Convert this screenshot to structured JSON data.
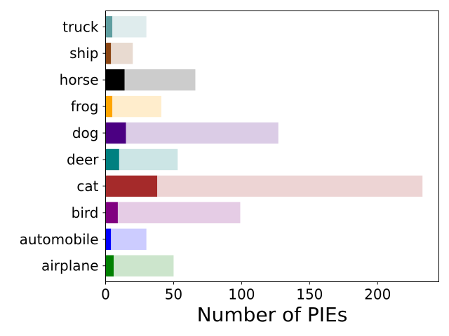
{
  "chart_data": {
    "type": "bar",
    "orientation": "horizontal",
    "stacked": true,
    "categories": [
      "airplane",
      "automobile",
      "bird",
      "cat",
      "deer",
      "dog",
      "frog",
      "horse",
      "ship",
      "truck"
    ],
    "series": [
      {
        "values": [
          6,
          4,
          9,
          38,
          10,
          15,
          5,
          14,
          4,
          5
        ]
      },
      {
        "values": [
          44,
          26,
          90,
          195,
          43,
          112,
          36,
          52,
          16,
          25
        ]
      }
    ],
    "colors": [
      {
        "solid": "#008000",
        "light": "#cce5cc"
      },
      {
        "solid": "#0000ff",
        "light": "#ccccff"
      },
      {
        "solid": "#800080",
        "light": "#e5cce5"
      },
      {
        "solid": "#a52a2a",
        "light": "#edd4d4"
      },
      {
        "solid": "#008080",
        "light": "#cce5e5"
      },
      {
        "solid": "#4b0082",
        "light": "#dbcce6"
      },
      {
        "solid": "#ffa500",
        "light": "#ffedcc"
      },
      {
        "solid": "#000000",
        "light": "#cccccc"
      },
      {
        "solid": "#8b4513",
        "light": "#e8dad0"
      },
      {
        "solid": "#5f9ea0",
        "light": "#dfeced"
      }
    ],
    "xlabel": "Number of PIEs",
    "ylabel": "",
    "title": "",
    "xlim": [
      0,
      245
    ],
    "xticks": [
      0,
      50,
      100,
      150,
      200
    ],
    "grid": false,
    "legend": "none"
  }
}
